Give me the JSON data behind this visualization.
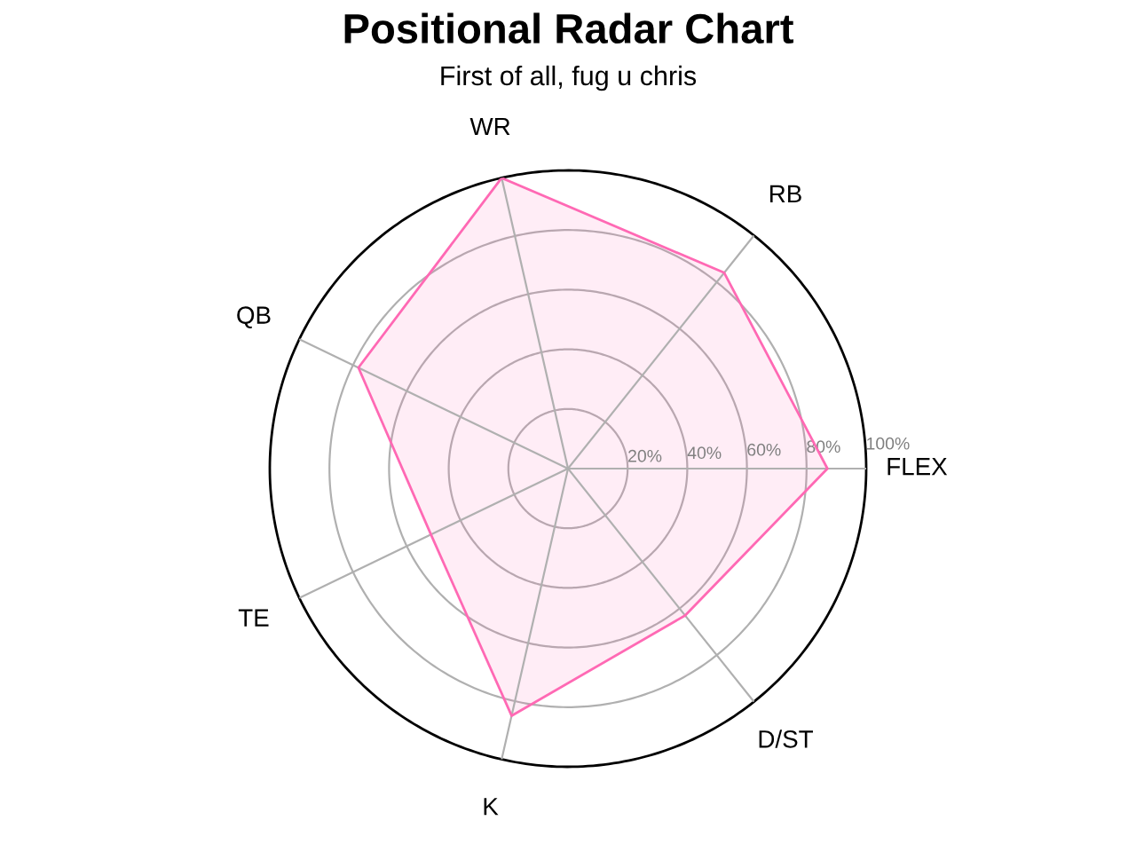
{
  "chart_data": {
    "type": "radar",
    "title": "Positional Radar Chart",
    "subtitle": "First of all, fug u chris",
    "categories": [
      "WR",
      "RB",
      "FLEX",
      "D/ST",
      "K",
      "TE",
      "QB"
    ],
    "series": [
      {
        "color": "#ff69b4",
        "values": [
          100,
          84,
          87,
          63,
          85,
          51,
          78
        ]
      }
    ],
    "ylim": [
      0,
      100
    ],
    "yticks": [
      {
        "value": 20,
        "label": "20%"
      },
      {
        "value": 40,
        "label": "40%"
      },
      {
        "value": 60,
        "label": "60%"
      },
      {
        "value": 80,
        "label": "80%"
      },
      {
        "value": 100,
        "label": "100%"
      }
    ],
    "grid": true
  }
}
